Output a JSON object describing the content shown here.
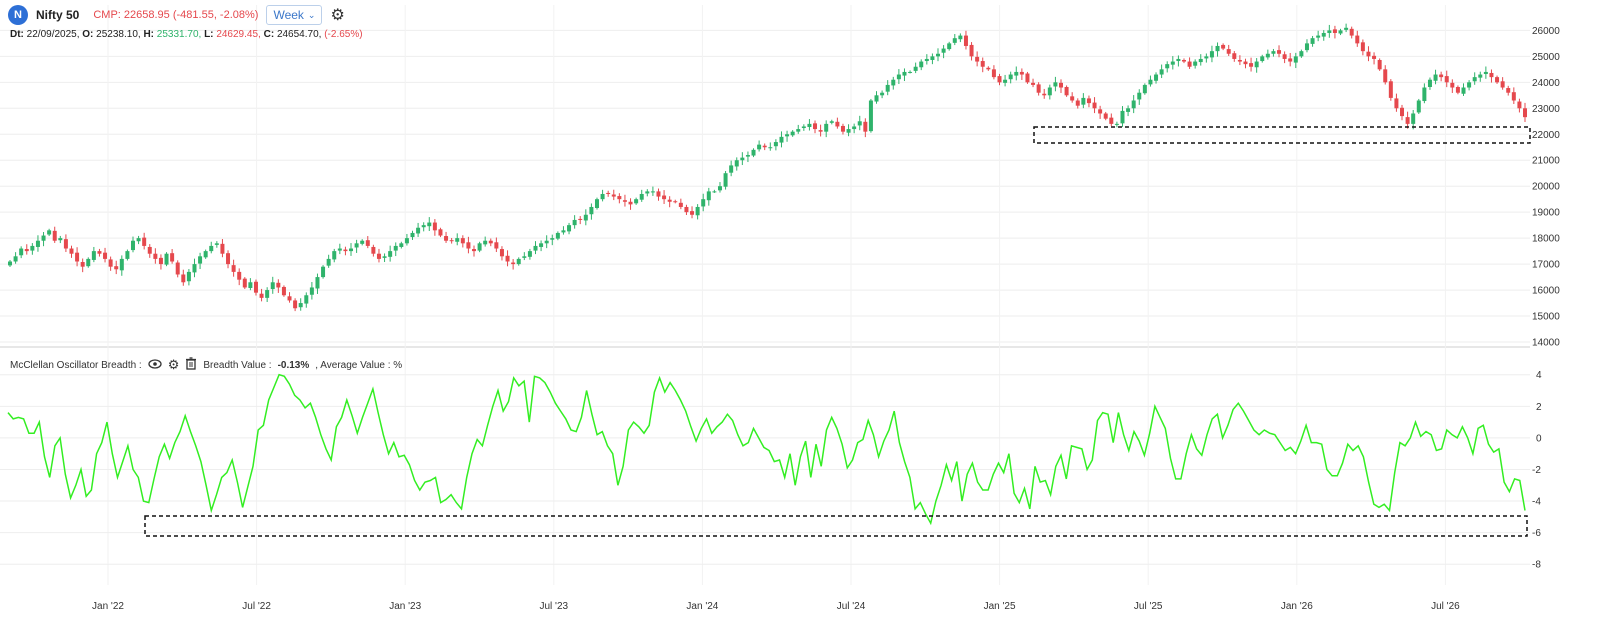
{
  "header": {
    "logo_letter": "N",
    "symbol": "Nifty 50",
    "cmp": "CMP: 22658.95 (-481.55, -2.08%)",
    "interval": "Week",
    "interval_arrow": "chevron-down-icon",
    "settings_icon": "gear-icon"
  },
  "ohlc": {
    "dt_label": "Dt:",
    "dt": "22/09/2025,",
    "o_label": "O:",
    "o": "25238.10,",
    "h_label": "H:",
    "h": "25331.70,",
    "l_label": "L:",
    "l": "24629.45,",
    "c_label": "C:",
    "c": "24654.70,",
    "chg": "(-2.65%)"
  },
  "indicator": {
    "name": "McClellan Oscillator Breadth :",
    "icons": [
      "eye-icon",
      "gear-icon",
      "trash-icon"
    ],
    "value_label": "Breadth Value :",
    "value": "-0.13%",
    "avg_label": ", Average Value : %"
  },
  "colors": {
    "up": "#2fb36b",
    "down": "#e5484d",
    "line": "#33ee22",
    "grid": "#eeeeee",
    "axis": "#333333"
  },
  "chart_data": [
    {
      "type": "candlestick",
      "title": "Nifty 50",
      "x_ticks": [
        "Jan '22",
        "Jul '22",
        "Jan '23",
        "Jul '23",
        "Jan '24",
        "Jul '24",
        "Jan '25",
        "Jul '25",
        "Jan '26",
        "Jul '26"
      ],
      "y_ticks": [
        14000,
        15000,
        16000,
        17000,
        18000,
        19000,
        20000,
        21000,
        22000,
        23000,
        24000,
        25000,
        26000
      ],
      "ylim": [
        14000,
        26400
      ],
      "close_series": [
        17100,
        17300,
        17600,
        17500,
        17700,
        17900,
        18100,
        18300,
        17900,
        18000,
        17600,
        17400,
        17100,
        16900,
        17200,
        17500,
        17400,
        17200,
        16900,
        16800,
        17200,
        17500,
        17900,
        18000,
        17700,
        17400,
        17200,
        17000,
        17400,
        17100,
        16600,
        16300,
        16700,
        17000,
        17300,
        17500,
        17700,
        17800,
        17400,
        17000,
        16700,
        16400,
        16100,
        16300,
        15900,
        15700,
        16000,
        16300,
        16100,
        15800,
        15600,
        15300,
        15500,
        15800,
        16100,
        16500,
        16900,
        17200,
        17500,
        17600,
        17500,
        17600,
        17800,
        17900,
        17700,
        17400,
        17200,
        17300,
        17500,
        17700,
        17800,
        18000,
        18200,
        18400,
        18500,
        18600,
        18300,
        18100,
        17900,
        17900,
        18000,
        17800,
        17600,
        17500,
        17800,
        17900,
        17800,
        17600,
        17300,
        17100,
        17000,
        17200,
        17300,
        17500,
        17700,
        17800,
        17900,
        18000,
        18200,
        18300,
        18500,
        18700,
        18700,
        18900,
        19200,
        19500,
        19700,
        19700,
        19600,
        19500,
        19400,
        19300,
        19500,
        19700,
        19800,
        19800,
        19600,
        19500,
        19400,
        19400,
        19200,
        19000,
        18900,
        19200,
        19500,
        19800,
        19800,
        20000,
        20500,
        20800,
        21000,
        21100,
        21200,
        21400,
        21600,
        21500,
        21500,
        21700,
        21900,
        22000,
        22100,
        22200,
        22300,
        22400,
        22200,
        22100,
        22400,
        22500,
        22300,
        22100,
        22200,
        22300,
        22500,
        22100,
        23300,
        23500,
        23600,
        23900,
        24100,
        24300,
        24400,
        24400,
        24600,
        24800,
        24900,
        25000,
        25100,
        25300,
        25500,
        25700,
        25800,
        25400,
        25000,
        24800,
        24600,
        24500,
        24200,
        24000,
        24100,
        24300,
        24400,
        24300,
        24000,
        23900,
        23600,
        23500,
        23800,
        24000,
        23800,
        23500,
        23300,
        23100,
        23400,
        23200,
        23000,
        22800,
        22600,
        22400,
        22400,
        22900,
        23000,
        23300,
        23600,
        23900,
        24100,
        24300,
        24500,
        24700,
        24800,
        24900,
        24800,
        24600,
        24800,
        24900,
        25000,
        25200,
        25400,
        25300,
        25100,
        24900,
        24800,
        24700,
        24600,
        24800,
        25000,
        25100,
        25200,
        25100,
        24900,
        24800,
        25000,
        25200,
        25500,
        25700,
        25800,
        25900,
        26000,
        25900,
        26000,
        26100,
        25800,
        25500,
        25200,
        25000,
        24900,
        24500,
        24000,
        23400,
        23000,
        22700,
        22400,
        22800,
        23300,
        23800,
        24100,
        24300,
        24200,
        24000,
        23800,
        23600,
        23800,
        24000,
        24200,
        24300,
        24400,
        24200,
        24000,
        23800,
        23600,
        23300,
        23000,
        22659
      ]
    },
    {
      "type": "line",
      "title": "McClellan Oscillator Breadth",
      "y_ticks": [
        -8,
        -6,
        -4,
        -2,
        0,
        2,
        4
      ],
      "ylim": [
        -9,
        4.3
      ],
      "values": [
        1.6,
        1.2,
        1.3,
        1.2,
        0.3,
        0.3,
        1.0,
        -1.2,
        -2.5,
        -0.5,
        0.0,
        -2.3,
        -3.8,
        -3.0,
        -2.0,
        -3.7,
        -3.3,
        -1.0,
        -0.3,
        1.0,
        -1.0,
        -2.5,
        -1.5,
        -0.5,
        -2.0,
        -2.5,
        -4.0,
        -4.1,
        -2.6,
        -1.2,
        -0.4,
        -1.3,
        -0.3,
        0.4,
        1.4,
        0.4,
        -0.5,
        -1.5,
        -3.0,
        -4.6,
        -3.6,
        -2.5,
        -2.2,
        -1.4,
        -2.8,
        -4.4,
        -3.1,
        -1.8,
        0.5,
        0.8,
        2.4,
        3.2,
        4.0,
        3.9,
        3.4,
        2.7,
        2.4,
        1.9,
        2.2,
        1.3,
        0.2,
        -0.7,
        -1.4,
        0.7,
        1.3,
        2.4,
        1.4,
        0.3,
        1.3,
        2.2,
        3.1,
        1.6,
        0.2,
        -1.0,
        -0.3,
        -1.2,
        -1.1,
        -1.7,
        -2.7,
        -3.3,
        -2.8,
        -2.7,
        -2.5,
        -4.1,
        -3.9,
        -3.6,
        -4.1,
        -4.5,
        -2.5,
        -1.0,
        -0.1,
        -0.5,
        0.8,
        2.0,
        3.0,
        1.7,
        2.3,
        3.8,
        3.3,
        3.6,
        1.0,
        3.9,
        3.8,
        3.5,
        2.9,
        2.2,
        1.7,
        1.2,
        0.5,
        0.4,
        1.3,
        3.0,
        1.5,
        0.2,
        0.4,
        -0.5,
        -1.0,
        -3.0,
        -1.8,
        0.5,
        1.0,
        0.7,
        0.3,
        0.8,
        2.9,
        3.8,
        2.9,
        3.5,
        3.0,
        2.4,
        1.7,
        0.7,
        -0.2,
        0.6,
        1.2,
        0.3,
        0.7,
        1.0,
        1.5,
        1.1,
        0.2,
        -0.5,
        -0.3,
        0.6,
        0.0,
        -0.6,
        -0.8,
        -1.5,
        -1.4,
        -2.5,
        -1.0,
        -3.0,
        -1.2,
        -0.2,
        -2.5,
        -0.4,
        -1.8,
        0.5,
        1.3,
        0.6,
        -0.4,
        -1.9,
        -1.4,
        -0.3,
        -0.1,
        1.1,
        0.2,
        -1.2,
        -0.2,
        0.5,
        1.7,
        -0.3,
        -1.5,
        -2.5,
        -4.5,
        -4.1,
        -4.8,
        -5.4,
        -4.0,
        -3.0,
        -1.7,
        -2.7,
        -1.5,
        -4.0,
        -2.3,
        -1.6,
        -2.8,
        -3.3,
        -3.3,
        -2.3,
        -1.6,
        -2.2,
        -1.0,
        -3.5,
        -4.1,
        -3.2,
        -4.5,
        -1.8,
        -2.8,
        -2.7,
        -3.6,
        -1.8,
        -1.1,
        -2.6,
        -0.5,
        -0.6,
        -0.7,
        -2.0,
        -1.4,
        1.1,
        1.6,
        1.5,
        -0.3,
        1.6,
        0.2,
        -0.8,
        0.4,
        -0.2,
        -1.1,
        0.3,
        2.0,
        1.3,
        0.6,
        -1.3,
        -2.6,
        -2.6,
        -1.0,
        0.2,
        -0.7,
        -1.1,
        0.2,
        1.2,
        1.5,
        0.0,
        0.8,
        1.8,
        2.2,
        1.7,
        1.1,
        0.5,
        0.2,
        0.5,
        0.3,
        0.2,
        -0.3,
        -0.8,
        -0.6,
        -1.0,
        -0.2,
        0.8,
        -0.3,
        -0.3,
        -0.4,
        -2.0,
        -2.4,
        -2.4,
        -1.6,
        -0.4,
        -0.8,
        -0.5,
        -1.2,
        -2.8,
        -4.2,
        -4.4,
        -4.2,
        -4.6,
        -2.2,
        -0.3,
        -0.5,
        0.0,
        1.0,
        0.1,
        0.4,
        0.2,
        -0.8,
        -0.7,
        0.5,
        0.2,
        0.0,
        0.7,
        0.0,
        -1.0,
        0.6,
        0.8,
        -0.4,
        -0.9,
        -0.7,
        -2.8,
        -3.4,
        -2.6,
        -2.7,
        -4.6
      ]
    }
  ]
}
